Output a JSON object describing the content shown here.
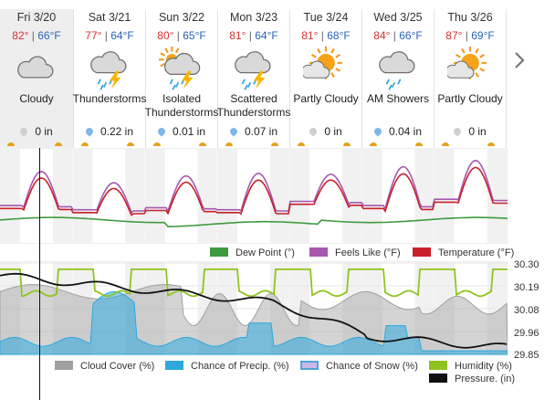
{
  "days": [
    {
      "date": "Fri 3/20",
      "hi": "82°",
      "lo": "66°F",
      "icon": "cloudy-icon",
      "cond": "Cloudy",
      "precip": "0 in",
      "drop": "#cfcfcf"
    },
    {
      "date": "Sat 3/21",
      "hi": "77°",
      "lo": "64°F",
      "icon": "thunderstorm-icon",
      "cond": "Thunderstorms",
      "precip": "0.22 in",
      "drop": "#7fb8e6"
    },
    {
      "date": "Sun 3/22",
      "hi": "80°",
      "lo": "65°F",
      "icon": "isolated-thunderstorm-icon",
      "cond": "Isolated Thunderstorms",
      "precip": "0.01 in",
      "drop": "#7fb8e6"
    },
    {
      "date": "Mon 3/23",
      "hi": "81°",
      "lo": "64°F",
      "icon": "thunderstorm-icon",
      "cond": "Scattered Thunderstorms",
      "precip": "0.07 in",
      "drop": "#7fb8e6"
    },
    {
      "date": "Tue 3/24",
      "hi": "81°",
      "lo": "68°F",
      "icon": "partly-cloudy-icon",
      "cond": "Partly Cloudy",
      "precip": "0 in",
      "drop": "#cfcfcf"
    },
    {
      "date": "Wed 3/25",
      "hi": "84°",
      "lo": "66°F",
      "icon": "showers-icon",
      "cond": "AM Showers",
      "precip": "0.04 in",
      "drop": "#7fb8e6"
    },
    {
      "date": "Thu 3/26",
      "hi": "87°",
      "lo": "69°F",
      "icon": "partly-cloudy-icon",
      "cond": "Partly Cloudy",
      "precip": "0 in",
      "drop": "#cfcfcf"
    }
  ],
  "legend_top": {
    "dew_point": "Dew Point (°)",
    "feels_like": "Feels Like (°F)",
    "temperature": "Temperature (°F)"
  },
  "legend_bottom": {
    "cloud_cover": "Cloud Cover (%)",
    "chance_precip": "Chance of Precip. (%)",
    "chance_snow": "Chance of Snow (%)",
    "humidity": "Humidity (%)",
    "pressure": "Pressure. (in)"
  },
  "pressure_axis": [
    "30.30",
    "30.19",
    "30.08",
    "29.96",
    "29.85"
  ],
  "colors": {
    "dew_point": "#3f9a3f",
    "feels_like": "#a657b0",
    "temperature": "#c8202a",
    "cloud_cover": "#a0a0a0",
    "chance_precip": "#2ea8dc",
    "chance_snow": "#a57bd1",
    "humidity": "#8fc31f",
    "pressure": "#111111"
  },
  "next_icon": "chevron-right-icon"
}
